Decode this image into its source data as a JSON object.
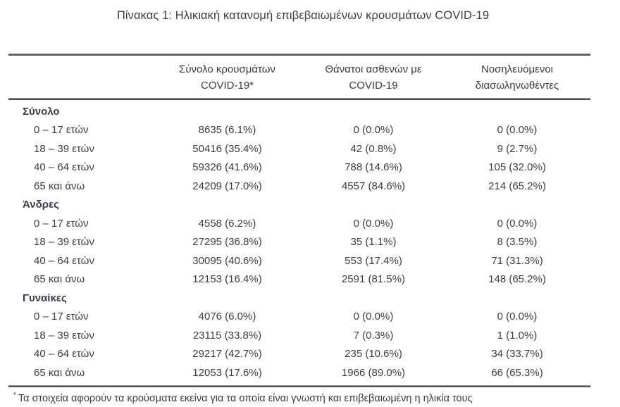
{
  "page": {
    "title": "Πίνακας 1: Ηλικιακή κατανομή επιβεβαιωμένων κρουσμάτων COVID-19"
  },
  "table": {
    "columns": [
      {
        "line1": "Σύνολο κρουσμάτων",
        "line2": "COVID-19*"
      },
      {
        "line1": "Θάνατοι ασθενών με",
        "line2": "COVID-19"
      },
      {
        "line1": "Νοσηλευόμενοι",
        "line2": "διασωληνωθέντες"
      }
    ],
    "sections": [
      {
        "label": "Σύνολο",
        "rows": [
          {
            "age": "0 – 17 ετών",
            "cases": "8635 (6.1%)",
            "deaths": "0 (0.0%)",
            "intubated": "0 (0.0%)"
          },
          {
            "age": "18 – 39 ετών",
            "cases": "50416 (35.4%)",
            "deaths": "42 (0.8%)",
            "intubated": "9 (2.7%)"
          },
          {
            "age": "40 – 64 ετών",
            "cases": "59326 (41.6%)",
            "deaths": "788 (14.6%)",
            "intubated": "105 (32.0%)"
          },
          {
            "age": "65 και άνω",
            "cases": "24209 (17.0%)",
            "deaths": "4557 (84.6%)",
            "intubated": "214 (65.2%)"
          }
        ]
      },
      {
        "label": "Άνδρες",
        "rows": [
          {
            "age": "0 – 17 ετών",
            "cases": "4558 (6.2%)",
            "deaths": "0 (0.0%)",
            "intubated": "0 (0.0%)"
          },
          {
            "age": "18 – 39 ετών",
            "cases": "27295 (36.8%)",
            "deaths": "35 (1.1%)",
            "intubated": "8 (3.5%)"
          },
          {
            "age": "40 – 64 ετών",
            "cases": "30095 (40.6%)",
            "deaths": "553 (17.4%)",
            "intubated": "71 (31.3%)"
          },
          {
            "age": "65 και άνω",
            "cases": "12153 (16.4%)",
            "deaths": "2591 (81.5%)",
            "intubated": "148 (65.2%)"
          }
        ]
      },
      {
        "label": "Γυναίκες",
        "rows": [
          {
            "age": "0 – 17 ετών",
            "cases": "4076 (6.0%)",
            "deaths": "0 (0.0%)",
            "intubated": "0 (0.0%)"
          },
          {
            "age": "18 – 39 ετών",
            "cases": "23115 (33.8%)",
            "deaths": "7 (0.3%)",
            "intubated": "1 (1.0%)"
          },
          {
            "age": "40 – 64 ετών",
            "cases": "29217 (42.7%)",
            "deaths": "235 (10.6%)",
            "intubated": "34 (33.7%)"
          },
          {
            "age": "65 και άνω",
            "cases": "12053 (17.6%)",
            "deaths": "1966 (89.0%)",
            "intubated": "66 (65.3%)"
          }
        ]
      }
    ]
  },
  "footnote": {
    "marker": "*",
    "text": "Τα στοιχεία αφορούν τα κρούσματα εκείνα για τα οποία είναι γνωστή και επιβεβαιωμένη η ηλικία τους"
  },
  "colors": {
    "text": "#3a3d46",
    "rule_dark": "#3e4045",
    "rule_light": "#b3b3b3",
    "background": "#ffffff"
  }
}
